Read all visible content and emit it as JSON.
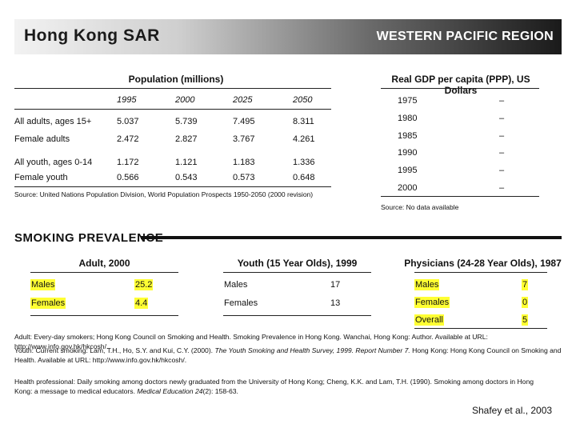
{
  "banner": {
    "left": "Hong Kong SAR",
    "right": "WESTERN PACIFIC REGION"
  },
  "population": {
    "title": "Population (millions)",
    "years": [
      "1995",
      "2000",
      "2025",
      "2050"
    ],
    "rows": [
      {
        "label": "All adults, ages 15+",
        "values": [
          "5.037",
          "5.739",
          "7.495",
          "8.311"
        ]
      },
      {
        "label": "Female adults",
        "values": [
          "2.472",
          "2.827",
          "3.767",
          "4.261"
        ]
      },
      {
        "label": "All youth, ages 0-14",
        "values": [
          "1.172",
          "1.121",
          "1.183",
          "1.336"
        ]
      },
      {
        "label": "Female youth",
        "values": [
          "0.566",
          "0.543",
          "0.573",
          "0.648"
        ]
      }
    ],
    "source": "Source: United Nations Population Division, World Population Prospects 1950-2050 (2000 revision)"
  },
  "gdp": {
    "title": "Real GDP per capita (PPP), US Dollars",
    "rows": [
      {
        "year": "1975",
        "value": "–"
      },
      {
        "year": "1980",
        "value": "–"
      },
      {
        "year": "1985",
        "value": "–"
      },
      {
        "year": "1990",
        "value": "–"
      },
      {
        "year": "1995",
        "value": "–"
      },
      {
        "year": "2000",
        "value": "–"
      }
    ],
    "source": "Source: No data available"
  },
  "smoking": {
    "title": "SMOKING PREVALENCE",
    "adult": {
      "title": "Adult, 2000",
      "rows": [
        {
          "label": "Males",
          "value": "25.2"
        },
        {
          "label": "Females",
          "value": "4.4"
        }
      ]
    },
    "youth": {
      "title": "Youth (15 Year Olds), 1999",
      "rows": [
        {
          "label": "Males",
          "value": "17"
        },
        {
          "label": "Females",
          "value": "13"
        }
      ]
    },
    "physicians": {
      "title": "Physicians (24-28 Year Olds), 1987",
      "rows": [
        {
          "label": "Males",
          "value": "7"
        },
        {
          "label": "Females",
          "value": "0"
        },
        {
          "label": "Overall",
          "value": "5"
        }
      ]
    }
  },
  "notes": {
    "adult": "Adult: Every-day smokers; Hong Kong Council on Smoking and Health. Smoking Prevalence in Hong Kong. Wanchai, Hong Kong: Author. Available at URL: http://www.info.gov.hk/hkcosh/.",
    "youth_pre": "Youth: Current smoking: Lam, T.H., Ho, S.Y. and Kui, C.Y. (2000). ",
    "youth_it": "The Youth Smoking and Health Survey, 1999. Report Number 7.",
    "youth_post": " Hong Kong: Hong Kong Council on Smoking and Health. Available at URL: http://www.info.gov.hk/hkcosh/.",
    "health_pre": "Health professional: Daily smoking among doctors newly graduated from the University of Hong Kong; Cheng, K.K. and Lam, T.H. (1990). Smoking among doctors in Hong Kong: a message to medical educators. ",
    "health_it": "Medical Education 24",
    "health_post": "(2): 158-63."
  },
  "credit": "Shafey et al., 2003",
  "colors": {
    "highlight": "#ffff33"
  }
}
